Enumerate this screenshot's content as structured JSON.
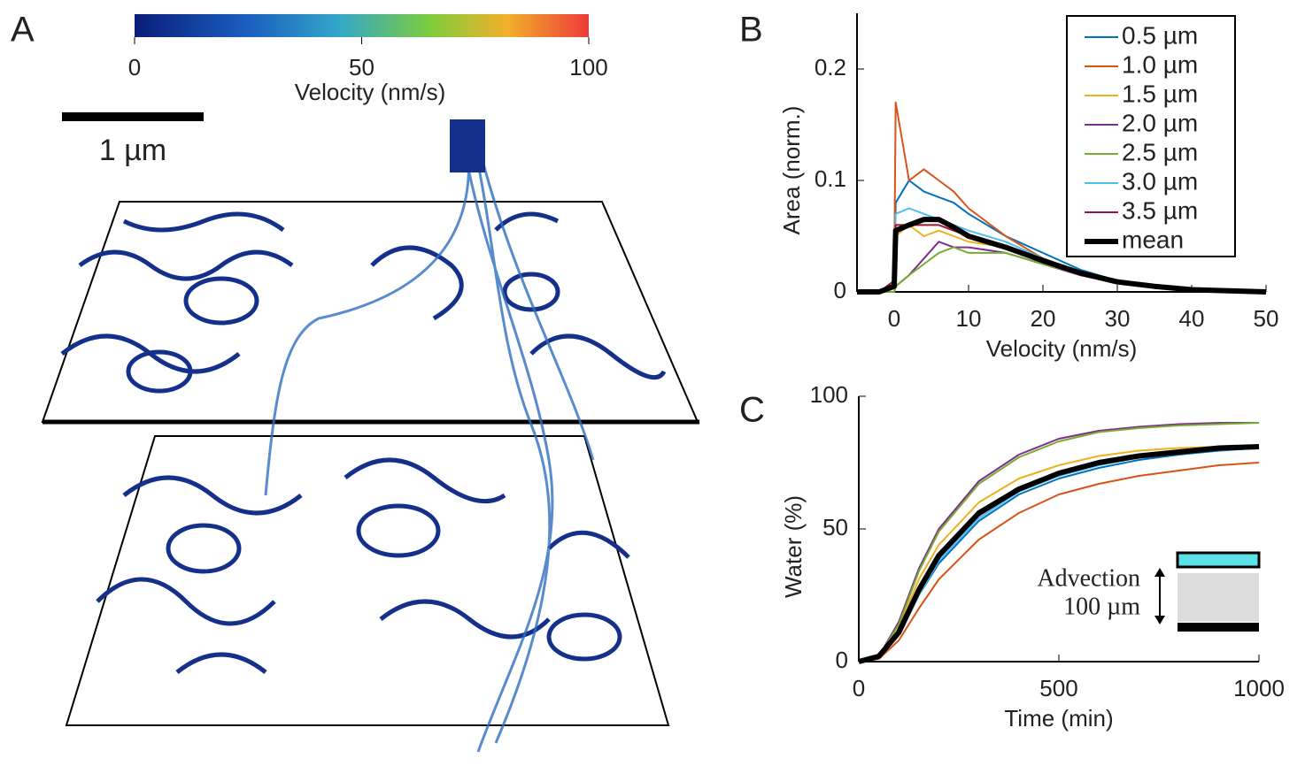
{
  "panel_labels": [
    "A",
    "B",
    "C"
  ],
  "panel_a": {
    "colorbar": {
      "label": "Velocity (nm/s)",
      "lim": [
        0,
        100
      ],
      "ticks": [
        0,
        50,
        100
      ]
    },
    "scale_bar": "1 µm"
  },
  "inset": {
    "label": "Advection",
    "size": "100 µm"
  },
  "chart_data": [
    {
      "type": "line",
      "xlabel": "Velocity (nm/s)",
      "ylabel": "Area (norm.)",
      "x": [
        -5,
        -2,
        0,
        0.2,
        2,
        4,
        6,
        8,
        10,
        15,
        20,
        25,
        30,
        35,
        40,
        45,
        50
      ],
      "xlim": [
        -5,
        50
      ],
      "xticks": [
        0,
        10,
        20,
        30,
        40,
        50
      ],
      "ylim": [
        0,
        0.25
      ],
      "yticks": [
        0,
        0.1,
        0.2
      ],
      "legend": "upper right",
      "series": [
        {
          "name": "0.5 µm",
          "color": "#0072bd",
          "width": 2,
          "values": [
            0,
            0,
            0.01,
            0.08,
            0.1,
            0.09,
            0.085,
            0.08,
            0.07,
            0.05,
            0.035,
            0.02,
            0.01,
            0.005,
            0.003,
            0.001,
            0
          ]
        },
        {
          "name": "1.0 µm",
          "color": "#d95319",
          "width": 2,
          "values": [
            0,
            0,
            0.01,
            0.17,
            0.1,
            0.11,
            0.1,
            0.09,
            0.075,
            0.05,
            0.03,
            0.018,
            0.01,
            0.005,
            0.002,
            0.001,
            0
          ]
        },
        {
          "name": "1.5 µm",
          "color": "#edb120",
          "width": 2,
          "values": [
            0,
            0,
            0.01,
            0.05,
            0.06,
            0.05,
            0.055,
            0.05,
            0.045,
            0.04,
            0.03,
            0.018,
            0.01,
            0.005,
            0.002,
            0.001,
            0
          ]
        },
        {
          "name": "2.0 µm",
          "color": "#7e2f8e",
          "width": 2,
          "values": [
            0,
            0,
            0,
            0.005,
            0.015,
            0.03,
            0.045,
            0.04,
            0.04,
            0.035,
            0.025,
            0.015,
            0.008,
            0.004,
            0.002,
            0.001,
            0
          ]
        },
        {
          "name": "2.5 µm",
          "color": "#77ac30",
          "width": 2,
          "values": [
            0,
            0,
            0,
            0.005,
            0.015,
            0.025,
            0.035,
            0.04,
            0.035,
            0.035,
            0.025,
            0.016,
            0.008,
            0.004,
            0.002,
            0.001,
            0
          ]
        },
        {
          "name": "3.0 µm",
          "color": "#4dbeee",
          "width": 2,
          "values": [
            0,
            0,
            0.01,
            0.07,
            0.075,
            0.07,
            0.065,
            0.06,
            0.055,
            0.045,
            0.03,
            0.018,
            0.01,
            0.005,
            0.002,
            0.001,
            0
          ]
        },
        {
          "name": "3.5 µm",
          "color": "#a2142f",
          "width": 2,
          "values": [
            0,
            0,
            0.01,
            0.06,
            0.06,
            0.06,
            0.06,
            0.055,
            0.05,
            0.04,
            0.03,
            0.018,
            0.01,
            0.005,
            0.002,
            0.001,
            0
          ]
        },
        {
          "name": "mean",
          "color": "#000000",
          "width": 6,
          "values": [
            0,
            0,
            0.005,
            0.055,
            0.06,
            0.065,
            0.065,
            0.058,
            0.05,
            0.04,
            0.028,
            0.017,
            0.009,
            0.005,
            0.002,
            0.001,
            0
          ]
        }
      ]
    },
    {
      "type": "line",
      "xlabel": "Time (min)",
      "ylabel": "Water (%)",
      "x": [
        0,
        50,
        100,
        150,
        200,
        300,
        400,
        500,
        600,
        700,
        800,
        900,
        1000
      ],
      "xlim": [
        0,
        1000
      ],
      "xticks": [
        0,
        500,
        1000
      ],
      "ylim": [
        0,
        100
      ],
      "yticks": [
        0,
        50,
        100
      ],
      "series": [
        {
          "color": "#0072bd",
          "width": 2,
          "values": [
            0,
            2,
            10,
            25,
            37,
            53,
            63,
            69,
            73,
            76,
            78,
            79.5,
            80.5
          ]
        },
        {
          "color": "#d95319",
          "width": 2,
          "values": [
            0,
            1,
            8,
            20,
            31,
            46,
            56,
            63,
            67,
            70,
            72,
            74,
            75
          ]
        },
        {
          "color": "#edb120",
          "width": 2,
          "values": [
            0,
            2,
            13,
            31,
            44,
            60,
            69,
            74,
            77.5,
            79.5,
            80.5,
            81,
            81.5
          ]
        },
        {
          "color": "#7e2f8e",
          "width": 2,
          "values": [
            0,
            2,
            15,
            35,
            50,
            68,
            78,
            84,
            87,
            88.5,
            89.5,
            90,
            90
          ]
        },
        {
          "color": "#77ac30",
          "width": 2,
          "values": [
            0,
            2,
            14,
            34,
            49,
            67,
            77,
            83,
            86.5,
            88,
            89,
            89.5,
            90
          ]
        },
        {
          "color": "#4dbeee",
          "width": 2,
          "values": [
            0,
            2,
            10,
            25,
            38,
            54,
            64,
            70,
            74,
            77,
            79,
            80,
            81
          ]
        },
        {
          "color": "#a2142f",
          "width": 2,
          "values": [
            0,
            2,
            11,
            26,
            39,
            55,
            64.5,
            70.5,
            74.5,
            77,
            78.5,
            80,
            80.5
          ]
        },
        {
          "color": "#000000",
          "width": 6,
          "values": [
            0,
            2,
            11,
            27,
            40,
            56,
            65,
            71,
            75,
            77.5,
            79,
            80.5,
            81
          ]
        }
      ]
    }
  ]
}
